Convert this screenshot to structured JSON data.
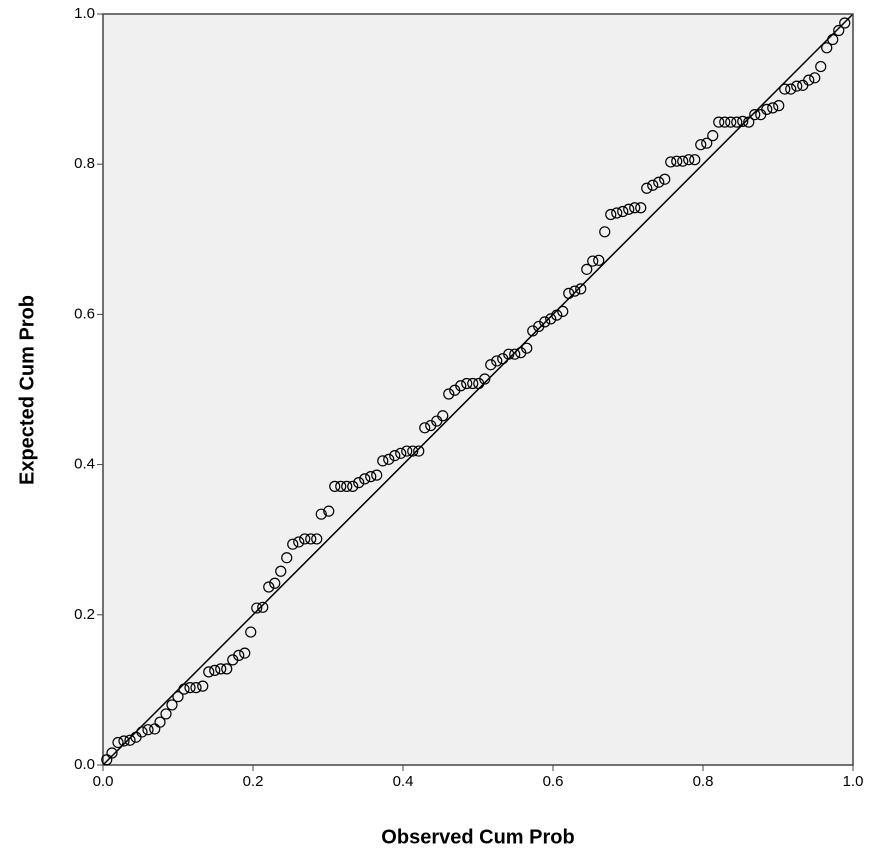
{
  "chart_data": {
    "type": "scatter",
    "x_label": "Observed Cum Prob",
    "y_label": "Expected Cum Prob",
    "x": [
      0.005,
      0.012,
      0.02,
      0.028,
      0.036,
      0.044,
      0.052,
      0.06,
      0.069,
      0.076,
      0.084,
      0.092,
      0.1,
      0.108,
      0.116,
      0.124,
      0.133,
      0.141,
      0.149,
      0.157,
      0.165,
      0.173,
      0.181,
      0.189,
      0.197,
      0.205,
      0.213,
      0.221,
      0.229,
      0.237,
      0.245,
      0.253,
      0.261,
      0.269,
      0.277,
      0.285,
      0.291,
      0.301,
      0.309,
      0.317,
      0.325,
      0.333,
      0.341,
      0.349,
      0.357,
      0.365,
      0.373,
      0.381,
      0.389,
      0.397,
      0.405,
      0.413,
      0.421,
      0.429,
      0.437,
      0.445,
      0.453,
      0.461,
      0.469,
      0.477,
      0.485,
      0.493,
      0.501,
      0.509,
      0.517,
      0.525,
      0.533,
      0.541,
      0.549,
      0.557,
      0.565,
      0.573,
      0.581,
      0.589,
      0.597,
      0.605,
      0.613,
      0.621,
      0.629,
      0.637,
      0.645,
      0.653,
      0.661,
      0.669,
      0.677,
      0.685,
      0.693,
      0.701,
      0.709,
      0.717,
      0.725,
      0.733,
      0.741,
      0.749,
      0.757,
      0.765,
      0.773,
      0.781,
      0.789,
      0.797,
      0.805,
      0.813,
      0.821,
      0.829,
      0.837,
      0.845,
      0.853,
      0.861,
      0.869,
      0.877,
      0.885,
      0.893,
      0.901,
      0.909,
      0.917,
      0.925,
      0.933,
      0.941,
      0.949,
      0.957,
      0.965,
      0.973,
      0.981,
      0.989
    ],
    "values": [
      0.007,
      0.016,
      0.03,
      0.032,
      0.033,
      0.037,
      0.044,
      0.047,
      0.048,
      0.057,
      0.068,
      0.08,
      0.091,
      0.101,
      0.103,
      0.103,
      0.105,
      0.124,
      0.126,
      0.128,
      0.128,
      0.14,
      0.146,
      0.149,
      0.177,
      0.209,
      0.21,
      0.237,
      0.242,
      0.258,
      0.276,
      0.294,
      0.297,
      0.301,
      0.301,
      0.301,
      0.334,
      0.338,
      0.371,
      0.371,
      0.371,
      0.371,
      0.376,
      0.381,
      0.384,
      0.386,
      0.405,
      0.407,
      0.412,
      0.415,
      0.418,
      0.418,
      0.418,
      0.449,
      0.452,
      0.458,
      0.465,
      0.494,
      0.499,
      0.505,
      0.508,
      0.508,
      0.508,
      0.514,
      0.533,
      0.538,
      0.541,
      0.547,
      0.547,
      0.549,
      0.555,
      0.578,
      0.584,
      0.59,
      0.594,
      0.599,
      0.604,
      0.628,
      0.631,
      0.634,
      0.66,
      0.671,
      0.672,
      0.71,
      0.733,
      0.735,
      0.737,
      0.74,
      0.742,
      0.742,
      0.768,
      0.772,
      0.776,
      0.78,
      0.803,
      0.804,
      0.804,
      0.806,
      0.806,
      0.826,
      0.828,
      0.838,
      0.856,
      0.856,
      0.856,
      0.856,
      0.857,
      0.856,
      0.866,
      0.866,
      0.873,
      0.875,
      0.878,
      0.9,
      0.9,
      0.904,
      0.905,
      0.912,
      0.915,
      0.93,
      0.955,
      0.966,
      0.978,
      0.988
    ],
    "color": "#000000",
    "plot_background": "#f0f0f0",
    "xlim": [
      0,
      1
    ],
    "ylim": [
      0,
      1
    ],
    "xticks": [
      {
        "value": 0,
        "label": "0.0"
      },
      0.2,
      0.4,
      0.6,
      0.8,
      {
        "value": 1,
        "label": "1.0"
      }
    ],
    "yticks": [
      {
        "value": 0,
        "label": "0.0"
      },
      0.2,
      0.4,
      0.6,
      0.8,
      {
        "value": 1,
        "label": "1.0"
      }
    ],
    "grid": false
  }
}
